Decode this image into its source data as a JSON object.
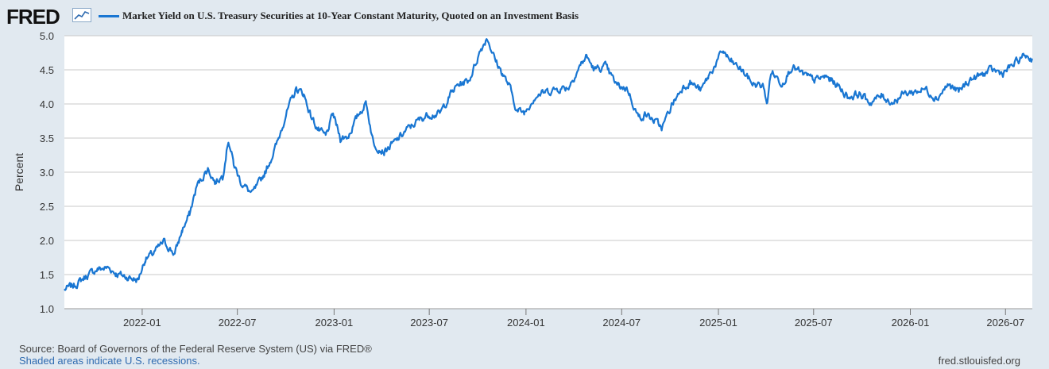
{
  "header": {
    "logo_text": "FRED",
    "series_title": "Market Yield on U.S. Treasury Securities at 10-Year Constant Maturity, Quoted on an Investment Basis"
  },
  "colors": {
    "series": "#1976d2",
    "background": "#e1e9f0",
    "plot_bg": "#ffffff",
    "grid": "#c8c8c8"
  },
  "chart_data": {
    "type": "line",
    "ylabel": "Percent",
    "ylim": [
      1.0,
      5.0
    ],
    "yticks": [
      "1.0",
      "1.5",
      "2.0",
      "2.5",
      "3.0",
      "3.5",
      "4.0",
      "4.5",
      "5.0"
    ],
    "xlim": [
      "2021-08-06",
      "2026-08-21"
    ],
    "xticks": [
      "2022-01",
      "2022-07",
      "2023-01",
      "2023-07",
      "2024-01",
      "2024-07",
      "2025-01",
      "2025-07",
      "2026-01",
      "2026-07"
    ],
    "grid": "horizontal",
    "series": [
      {
        "name": "Market Yield on U.S. Treasury Securities at 10-Year Constant Maturity, Quoted on an Investment Basis",
        "x": [
          "2021-08-06",
          "2021-08-27",
          "2021-09-17",
          "2021-10-08",
          "2021-10-29",
          "2021-11-12",
          "2021-11-26",
          "2021-12-10",
          "2021-12-24",
          "2022-01-07",
          "2022-01-21",
          "2022-02-11",
          "2022-03-04",
          "2022-03-18",
          "2022-04-01",
          "2022-04-15",
          "2022-05-06",
          "2022-05-20",
          "2022-06-03",
          "2022-06-14",
          "2022-06-24",
          "2022-07-08",
          "2022-07-29",
          "2022-08-12",
          "2022-08-26",
          "2022-09-16",
          "2022-09-30",
          "2022-10-21",
          "2022-11-04",
          "2022-11-18",
          "2022-12-02",
          "2022-12-16",
          "2022-12-30",
          "2023-01-13",
          "2023-01-27",
          "2023-02-17",
          "2023-03-03",
          "2023-03-17",
          "2023-04-06",
          "2023-04-28",
          "2023-05-19",
          "2023-06-09",
          "2023-06-30",
          "2023-07-21",
          "2023-08-11",
          "2023-08-25",
          "2023-09-15",
          "2023-10-06",
          "2023-10-19",
          "2023-11-03",
          "2023-11-17",
          "2023-12-01",
          "2023-12-15",
          "2023-12-29",
          "2024-01-19",
          "2024-02-09",
          "2024-03-01",
          "2024-03-22",
          "2024-04-12",
          "2024-04-25",
          "2024-05-10",
          "2024-05-31",
          "2024-06-21",
          "2024-07-12",
          "2024-08-02",
          "2024-08-16",
          "2024-09-06",
          "2024-09-16",
          "2024-10-04",
          "2024-10-25",
          "2024-11-08",
          "2024-11-29",
          "2024-12-13",
          "2025-01-10",
          "2025-01-24",
          "2025-02-14",
          "2025-03-07",
          "2025-03-28",
          "2025-04-04",
          "2025-04-11",
          "2025-05-02",
          "2025-05-21",
          "2025-06-13",
          "2025-07-03",
          "2025-07-25",
          "2025-08-15",
          "2025-09-05",
          "2025-09-26",
          "2025-10-17",
          "2025-11-07",
          "2025-11-28",
          "2025-12-19",
          "2026-01-09",
          "2026-01-30",
          "2026-02-20",
          "2026-03-13",
          "2026-04-03",
          "2026-04-24",
          "2026-05-15",
          "2026-06-05",
          "2026-06-26",
          "2026-07-17",
          "2026-08-07",
          "2026-08-21"
        ],
        "y": [
          1.28,
          1.35,
          1.48,
          1.58,
          1.6,
          1.52,
          1.48,
          1.45,
          1.42,
          1.73,
          1.8,
          1.98,
          1.8,
          2.15,
          2.38,
          2.8,
          3.05,
          2.85,
          2.95,
          3.48,
          3.12,
          2.85,
          2.68,
          2.85,
          3.05,
          3.45,
          3.82,
          4.22,
          4.15,
          3.82,
          3.62,
          3.52,
          3.85,
          3.5,
          3.52,
          3.85,
          4.02,
          3.42,
          3.3,
          3.45,
          3.62,
          3.75,
          3.85,
          3.85,
          4.15,
          4.28,
          4.35,
          4.78,
          4.98,
          4.65,
          4.45,
          4.25,
          3.9,
          3.88,
          4.12,
          4.18,
          4.22,
          4.25,
          4.55,
          4.7,
          4.5,
          4.55,
          4.28,
          4.22,
          3.8,
          3.85,
          3.72,
          3.65,
          3.98,
          4.25,
          4.32,
          4.2,
          4.4,
          4.78,
          4.62,
          4.5,
          4.3,
          4.25,
          4.0,
          4.48,
          4.3,
          4.55,
          4.42,
          4.35,
          4.4,
          4.28,
          4.1,
          4.15,
          4.02,
          4.12,
          4.02,
          4.15,
          4.18,
          4.22,
          4.08,
          4.28,
          4.18,
          4.35,
          4.42,
          4.5,
          4.45,
          4.58,
          4.72,
          4.65
        ]
      }
    ]
  },
  "footer": {
    "source": "Source: Board of Governors of the Federal Reserve System (US) via FRED®",
    "recessions_note": "Shaded areas indicate U.S. recessions.",
    "site_url": "fred.stlouisfed.org"
  }
}
